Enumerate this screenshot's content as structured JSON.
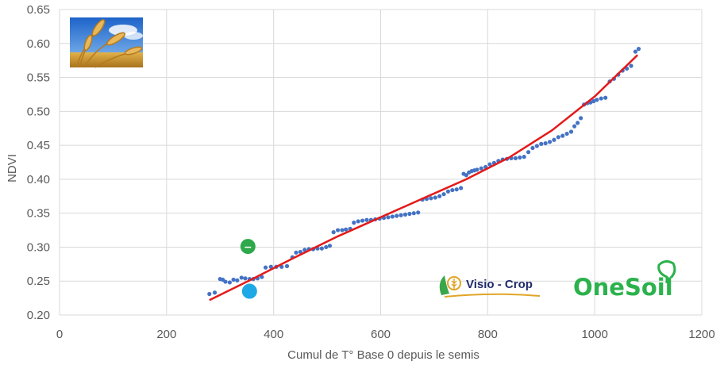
{
  "colors": {
    "points": "#4472c4",
    "trend": "#e31b1b",
    "green_marker": "#2ea84a",
    "blue_marker": "#1ea8e6",
    "grid": "#d9d9d9",
    "text": "#595959",
    "visio_crop_text": "#1f2a6b",
    "onesoil": "#2bb24c"
  },
  "logos": {
    "visio_crop": "Visio - Crop",
    "onesoil": "OneSoil",
    "wheat_image": "wheat-photo"
  },
  "chart_data": {
    "type": "scatter",
    "xlabel": "Cumul de T° Base 0 depuis le semis",
    "ylabel": "NDVI",
    "xlim": [
      0,
      1200
    ],
    "ylim": [
      0.2,
      0.65
    ],
    "xticks": [
      "0",
      "200",
      "400",
      "600",
      "800",
      "1000",
      "1200"
    ],
    "yticks": [
      "0.20",
      "0.25",
      "0.30",
      "0.35",
      "0.40",
      "0.45",
      "0.50",
      "0.55",
      "0.60",
      "0.65"
    ],
    "grid": true,
    "series": [
      {
        "kind": "points",
        "x": [
          280,
          290,
          300,
          305,
          310,
          318,
          325,
          332,
          340,
          347,
          355,
          362,
          370,
          378,
          385,
          395,
          405,
          415,
          425,
          435,
          442,
          450,
          458,
          466,
          474,
          482,
          490,
          498,
          505,
          512,
          520,
          528,
          535,
          543,
          550,
          558,
          566,
          574,
          582,
          590,
          598,
          606,
          614,
          622,
          630,
          638,
          646,
          654,
          662,
          670,
          678,
          686,
          694,
          702,
          710,
          718,
          726,
          734,
          742,
          750,
          755,
          760,
          765,
          770,
          775,
          780,
          788,
          796,
          804,
          812,
          820,
          828,
          836,
          844,
          852,
          860,
          868,
          876,
          884,
          892,
          900,
          908,
          916,
          924,
          932,
          940,
          948,
          956,
          962,
          968,
          974,
          980,
          986,
          992,
          998,
          1004,
          1012,
          1020,
          1028,
          1036,
          1044,
          1052,
          1060,
          1068,
          1076,
          1082
        ],
        "y": [
          0.231,
          0.233,
          0.253,
          0.252,
          0.249,
          0.248,
          0.252,
          0.251,
          0.255,
          0.254,
          0.253,
          0.253,
          0.254,
          0.256,
          0.27,
          0.271,
          0.271,
          0.271,
          0.272,
          0.285,
          0.292,
          0.293,
          0.296,
          0.297,
          0.297,
          0.298,
          0.298,
          0.3,
          0.302,
          0.322,
          0.325,
          0.325,
          0.326,
          0.327,
          0.336,
          0.338,
          0.339,
          0.34,
          0.34,
          0.341,
          0.342,
          0.343,
          0.344,
          0.345,
          0.346,
          0.347,
          0.348,
          0.349,
          0.35,
          0.351,
          0.37,
          0.371,
          0.372,
          0.373,
          0.375,
          0.378,
          0.382,
          0.384,
          0.385,
          0.387,
          0.408,
          0.406,
          0.41,
          0.412,
          0.413,
          0.414,
          0.416,
          0.418,
          0.422,
          0.424,
          0.427,
          0.429,
          0.43,
          0.431,
          0.431,
          0.432,
          0.433,
          0.44,
          0.446,
          0.449,
          0.452,
          0.453,
          0.455,
          0.458,
          0.462,
          0.464,
          0.467,
          0.47,
          0.478,
          0.483,
          0.49,
          0.51,
          0.512,
          0.513,
          0.515,
          0.517,
          0.519,
          0.52,
          0.544,
          0.548,
          0.554,
          0.56,
          0.563,
          0.567,
          0.588,
          0.592
        ]
      },
      {
        "kind": "trendline",
        "x": [
          280,
          360,
          440,
          520,
          600,
          680,
          760,
          840,
          920,
          1000,
          1080
        ],
        "y": [
          0.222,
          0.253,
          0.285,
          0.316,
          0.344,
          0.372,
          0.4,
          0.432,
          0.472,
          0.522,
          0.583
        ]
      }
    ],
    "markers": [
      {
        "name": "green",
        "x": 352,
        "y": 0.301
      },
      {
        "name": "blue",
        "x": 355,
        "y": 0.235
      }
    ]
  }
}
